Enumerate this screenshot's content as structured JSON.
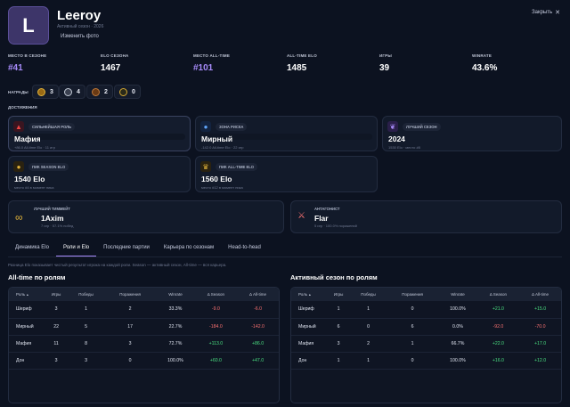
{
  "profile": {
    "initial": "L",
    "name": "Leeroy",
    "subtitle": "Активный сезон · 2026",
    "edit_photo": "Изменить фото"
  },
  "close_label": "Закрыть",
  "stats": [
    {
      "label": "Место в сезоне",
      "value": "#41",
      "accent": true
    },
    {
      "label": "Elo сезона",
      "value": "1467",
      "accent": false
    },
    {
      "label": "Место all-time",
      "value": "#101",
      "accent": true
    },
    {
      "label": "All-time Elo",
      "value": "1485",
      "accent": false
    },
    {
      "label": "Игры",
      "value": "39",
      "accent": false
    },
    {
      "label": "Winrate",
      "value": "43.6%",
      "accent": false
    }
  ],
  "awards": {
    "label": "НАГРАДЫ",
    "items": [
      "3",
      "4",
      "2",
      "0"
    ]
  },
  "achievements": {
    "label": "ДОСТИЖЕНИЯ",
    "cards": [
      {
        "chip": "Сильнейшая роль",
        "value": "Мафия",
        "sub": "+86.0 All-time Elo · 11 игр"
      },
      {
        "chip": "Зона риска",
        "value": "Мирный",
        "sub": "-142.0 All-time Elo · 22 игр"
      },
      {
        "chip": "Лучший сезон",
        "value": "2024",
        "sub": "1530 Elo · место #8"
      },
      {
        "chip": "Пик season Elo",
        "value": "1540 Elo",
        "sub": "место #4 в момент пика"
      },
      {
        "chip": "Пик all-time Elo",
        "value": "1560 Elo",
        "sub": "место #12 в момент пика"
      },
      {
        "chip": "Лучший тиммейт",
        "value": "1Axim",
        "sub": "7 игр · 57.1% побед"
      },
      {
        "chip": "Антагонист",
        "value": "Flar",
        "sub": "5 игр · 100.0% поражений"
      }
    ]
  },
  "tabs": [
    "Динамика Elo",
    "Роли и Elo",
    "Последние партии",
    "Карьера по сезонам",
    "Head-to-head"
  ],
  "active_tab": 1,
  "note": "Разница Elo показывает чистый результат игрока на каждой роли. Season — активный сезон, All-time — вся карьера.",
  "alltime": {
    "title": "All-time по ролям",
    "headers": [
      "Роль",
      "Игры",
      "Победы",
      "Поражения",
      "Winrate",
      "Δ Season",
      "Δ All-time"
    ],
    "rows": [
      [
        "Шериф",
        "3",
        "1",
        "2",
        "33.3%",
        "-9.0",
        "-6.0"
      ],
      [
        "Мирный",
        "22",
        "5",
        "17",
        "22.7%",
        "-184.0",
        "-142.0"
      ],
      [
        "Мафия",
        "11",
        "8",
        "3",
        "72.7%",
        "+113.0",
        "+86.0"
      ],
      [
        "Дон",
        "3",
        "3",
        "0",
        "100.0%",
        "+60.0",
        "+47.0"
      ]
    ]
  },
  "season": {
    "title": "Активный сезон по ролям",
    "headers": [
      "Роль",
      "Игры",
      "Победы",
      "Поражения",
      "Winrate",
      "Δ Season",
      "Δ All-time"
    ],
    "rows": [
      [
        "Шериф",
        "1",
        "1",
        "0",
        "100.0%",
        "+21.0",
        "+15.0"
      ],
      [
        "Мирный",
        "6",
        "0",
        "6",
        "0.0%",
        "-92.0",
        "-70.0"
      ],
      [
        "Мафия",
        "3",
        "2",
        "1",
        "66.7%",
        "+22.0",
        "+17.0"
      ],
      [
        "Дон",
        "1",
        "1",
        "0",
        "100.0%",
        "+16.0",
        "+12.0"
      ]
    ]
  },
  "colors": {
    "accent": "#a78bfa",
    "positive": "#4ade80",
    "negative": "#f87171"
  }
}
